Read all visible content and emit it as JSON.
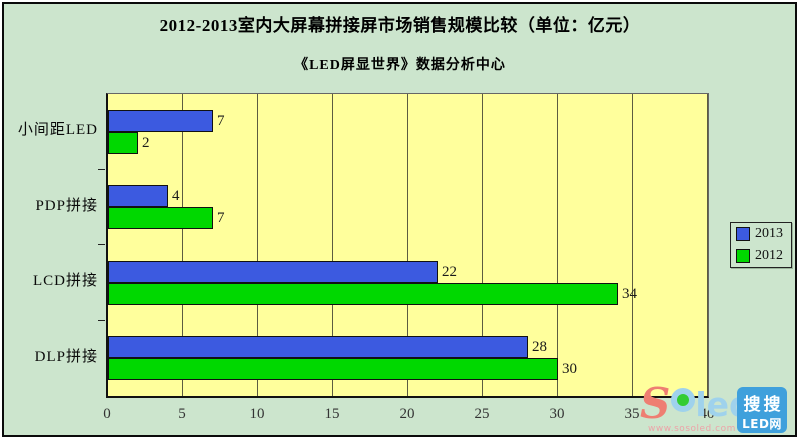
{
  "frame": {
    "background": "#cce5cd",
    "border_color": "#0a0a0a"
  },
  "header": {
    "title": "2012-2013室内大屏幕拼接屏市场销售规模比较（单位：亿元）",
    "subtitle": "《LED屏显世界》数据分析中心"
  },
  "chart_data": {
    "type": "bar",
    "orientation": "horizontal",
    "title": "2012-2013室内大屏幕拼接屏市场销售规模比较（单位：亿元）",
    "subtitle": "《LED屏显世界》数据分析中心",
    "categories": [
      "小间距LED",
      "PDP拼接",
      "LCD拼接",
      "DLP拼接"
    ],
    "series": [
      {
        "name": "2013",
        "color": "#3c5ae0",
        "values": [
          7,
          4,
          22,
          28
        ]
      },
      {
        "name": "2012",
        "color": "#00d800",
        "values": [
          2,
          7,
          34,
          30
        ]
      }
    ],
    "xlim": [
      0,
      40
    ],
    "xticks": [
      0,
      5,
      10,
      15,
      20,
      25,
      30,
      35,
      40
    ],
    "value_labels": true,
    "grid": "vertical",
    "plot_background": "#ffff9c",
    "grid_color": "#5c5c40",
    "legend_position": "right"
  },
  "watermark": {
    "brand_s": "S",
    "brand_led": "led",
    "url": "www.sosoled.com",
    "badge_line1": "搜搜",
    "badge_line2": "LED网",
    "colors": {
      "s": "#ee7e72",
      "letters": "#9fd2ec",
      "bulb": "#33cc33",
      "url": "#eda3a8",
      "badge_bg": "#3fa0dc"
    }
  }
}
